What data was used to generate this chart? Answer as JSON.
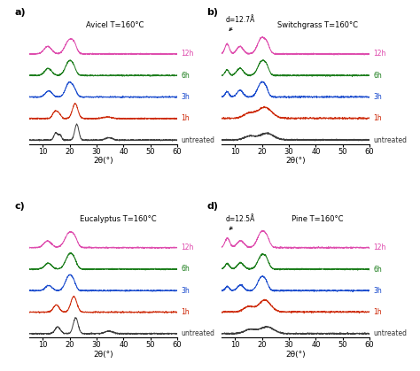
{
  "subplots": [
    {
      "label": "a)",
      "title": "Avicel T=160°C",
      "annotation": null
    },
    {
      "label": "b)",
      "title": "Switchgrass T=160°C",
      "annotation": "d=12.7Å"
    },
    {
      "label": "c)",
      "title": "Eucalyptus T=160°C",
      "annotation": null
    },
    {
      "label": "d)",
      "title": "Pine T=160°C",
      "annotation": "d=12.5Å"
    }
  ],
  "series_labels": [
    "untreated",
    "1h",
    "3h",
    "6h",
    "12h"
  ],
  "series_colors": [
    "#333333",
    "#cc2200",
    "#1144cc",
    "#117711",
    "#dd44aa"
  ],
  "x_range": [
    5,
    60
  ],
  "xlabel": "2θ(°)",
  "offsets": [
    0.0,
    0.12,
    0.24,
    0.36,
    0.48
  ]
}
